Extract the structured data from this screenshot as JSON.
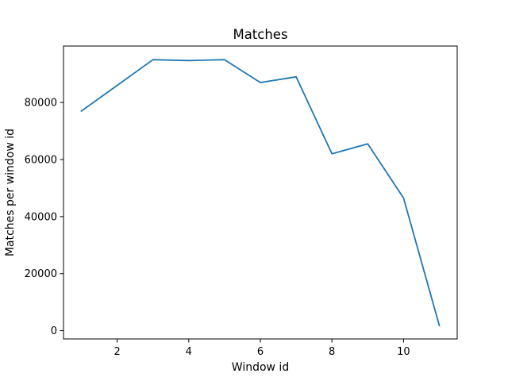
{
  "chart_data": {
    "type": "line",
    "title": "Matches",
    "xlabel": "Window id",
    "ylabel": "Matches per window id",
    "xlim": [
      0.5,
      11.5
    ],
    "ylim": [
      -2900,
      99800
    ],
    "xticks": [
      2,
      4,
      6,
      8,
      10
    ],
    "yticks": [
      0,
      20000,
      40000,
      60000,
      80000
    ],
    "grid": false,
    "legend": "none",
    "series": [
      {
        "color": "#1f77b4",
        "x": [
          1,
          2,
          3,
          4,
          5,
          6,
          7,
          8,
          9,
          10,
          11
        ],
        "y": [
          77000,
          86000,
          95000,
          94700,
          95000,
          87000,
          89000,
          62000,
          65500,
          46500,
          1800
        ]
      }
    ]
  }
}
